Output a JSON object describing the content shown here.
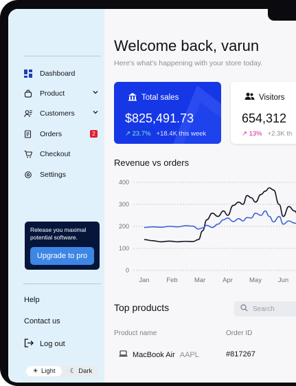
{
  "sidebar": {
    "nav": [
      {
        "label": "Dashboard",
        "icon": "dashboard-icon"
      },
      {
        "label": "Product",
        "icon": "bag-icon",
        "expandable": true
      },
      {
        "label": "Customers",
        "icon": "users-icon",
        "expandable": true
      },
      {
        "label": "Orders",
        "icon": "receipt-icon",
        "badge": "2"
      },
      {
        "label": "Checkout",
        "icon": "cart-icon"
      },
      {
        "label": "Settings",
        "icon": "gear-icon"
      }
    ],
    "promo": {
      "text": "Release you maximal potential software.",
      "button": "Upgrade to pro"
    },
    "help": "Help",
    "contact": "Contact us",
    "logout": "Log out",
    "theme": {
      "light": "Light",
      "dark": "Dark",
      "selected": "Light"
    }
  },
  "header": {
    "title": "Welcome back, varun",
    "subtitle": "Here's what's happening with your store today."
  },
  "cards": {
    "sales": {
      "label": "Total sales",
      "value": "$825,491.73",
      "change": "23.7%",
      "delta": "+18.4K this week"
    },
    "visitors": {
      "label": "Visitors",
      "value": "654,312",
      "change": "13%",
      "delta": "+2.3K th"
    }
  },
  "chart_title": "Revenue vs orders",
  "chart_data": {
    "type": "line",
    "categories": [
      "Jan",
      "Feb",
      "Mar",
      "Apr",
      "May",
      "Jun"
    ],
    "ylim": [
      0,
      400
    ],
    "yticks": [
      "400",
      "300",
      "200",
      "100",
      "0"
    ],
    "grid": true,
    "series": [
      {
        "color": "#111322",
        "x": [
          0,
          0.3,
          0.6,
          0.9,
          1.2,
          1.5,
          1.75,
          1.95,
          2.1,
          2.25,
          2.45,
          2.65,
          2.85,
          3.0,
          3.2,
          3.4,
          3.55,
          3.7,
          3.85,
          4.0,
          4.2,
          4.35,
          4.5,
          4.65,
          4.85,
          5.0,
          5.2,
          5.4,
          5.6,
          5.85
        ],
        "values": [
          140,
          135,
          130,
          133,
          130,
          132,
          131,
          140,
          180,
          230,
          260,
          245,
          270,
          250,
          295,
          310,
          300,
          340,
          330,
          310,
          345,
          360,
          375,
          365,
          300,
          245,
          290,
          270,
          230,
          215
        ]
      },
      {
        "color": "#3a63d6",
        "x": [
          0,
          0.3,
          0.6,
          0.9,
          1.2,
          1.5,
          1.75,
          1.95,
          2.1,
          2.25,
          2.45,
          2.65,
          2.85,
          3.0,
          3.2,
          3.4,
          3.55,
          3.7,
          3.85,
          4.0,
          4.2,
          4.35,
          4.5,
          4.65,
          4.85,
          5.0,
          5.2,
          5.4,
          5.6,
          5.85
        ],
        "values": [
          195,
          198,
          196,
          200,
          198,
          203,
          201,
          188,
          193,
          205,
          195,
          210,
          230,
          238,
          222,
          235,
          225,
          240,
          238,
          260,
          250,
          270,
          245,
          220,
          245,
          210,
          225,
          215,
          205,
          210
        ]
      }
    ]
  },
  "top_products": {
    "title": "Top products",
    "search_placeholder": "Search",
    "columns": [
      "Product name",
      "Order ID"
    ],
    "rows": [
      {
        "name": "MacBook Air",
        "ticker": "AAPL",
        "order_id": "#817267"
      }
    ]
  }
}
